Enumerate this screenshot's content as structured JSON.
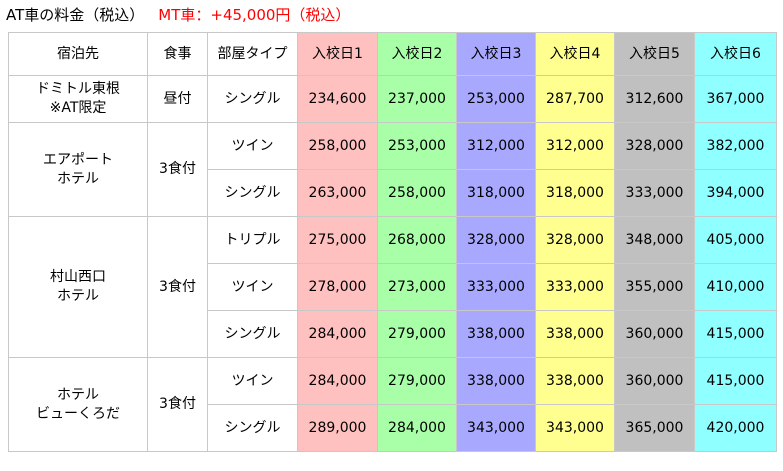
{
  "title": {
    "at": "AT車の料金（税込）",
    "mt": "MT車：+45,000円（税込）"
  },
  "headers": {
    "place": "宿泊先",
    "meal": "食事",
    "room": "部屋タイプ",
    "dates": [
      "入校日1",
      "入校日2",
      "入校日3",
      "入校日4",
      "入校日5",
      "入校日6"
    ]
  },
  "date_colors": [
    "#ffc0c0",
    "#a8ffa8",
    "#a8a8ff",
    "#ffff90",
    "#c0c0c0",
    "#90ffff"
  ],
  "groups": [
    {
      "place_lines": [
        "ドミトル東根",
        "※AT限定"
      ],
      "meal": "昼付",
      "rows": [
        {
          "room": "シングル",
          "prices": [
            "234,600",
            "237,000",
            "253,000",
            "287,700",
            "312,600",
            "367,000"
          ]
        }
      ]
    },
    {
      "place_lines": [
        "エアポート",
        "ホテル"
      ],
      "meal": "3食付",
      "rows": [
        {
          "room": "ツイン",
          "prices": [
            "258,000",
            "253,000",
            "312,000",
            "312,000",
            "328,000",
            "382,000"
          ]
        },
        {
          "room": "シングル",
          "prices": [
            "263,000",
            "258,000",
            "318,000",
            "318,000",
            "333,000",
            "394,000"
          ]
        }
      ]
    },
    {
      "place_lines": [
        "村山西口",
        "ホテル"
      ],
      "meal": "3食付",
      "rows": [
        {
          "room": "トリプル",
          "prices": [
            "275,000",
            "268,000",
            "328,000",
            "328,000",
            "348,000",
            "405,000"
          ]
        },
        {
          "room": "ツイン",
          "prices": [
            "278,000",
            "273,000",
            "333,000",
            "333,000",
            "355,000",
            "410,000"
          ]
        },
        {
          "room": "シングル",
          "prices": [
            "284,000",
            "279,000",
            "338,000",
            "338,000",
            "360,000",
            "415,000"
          ]
        }
      ]
    },
    {
      "place_lines": [
        "ホテル",
        "ビューくろだ"
      ],
      "meal": "3食付",
      "rows": [
        {
          "room": "ツイン",
          "prices": [
            "284,000",
            "279,000",
            "338,000",
            "338,000",
            "360,000",
            "415,000"
          ]
        },
        {
          "room": "シングル",
          "prices": [
            "289,000",
            "284,000",
            "343,000",
            "343,000",
            "365,000",
            "420,000"
          ]
        }
      ]
    }
  ]
}
